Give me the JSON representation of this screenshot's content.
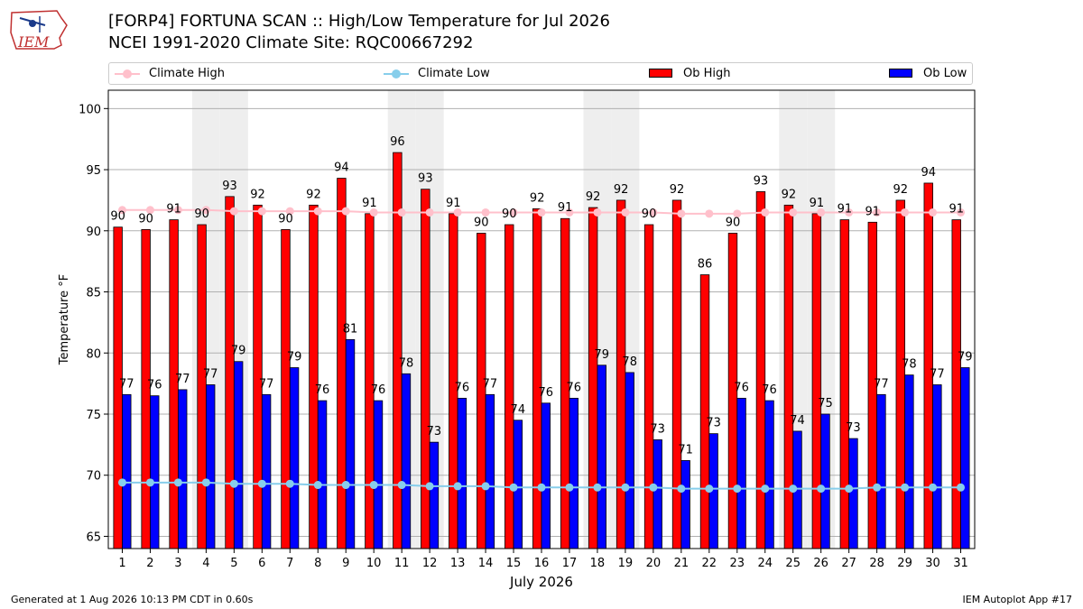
{
  "header": {
    "title_line1": "[FORP4] FORTUNA SCAN :: High/Low Temperature for Jul 2026",
    "title_line2": "NCEI 1991-2020 Climate Site: RQC00667292",
    "logo_text": "IEM"
  },
  "footer": {
    "left": "Generated at 1 Aug 2026 10:13 PM CDT in 0.60s",
    "right": "IEM Autoplot App #17"
  },
  "colors": {
    "ob_high": "#ff0000",
    "ob_low": "#0000ff",
    "climate_high": "#ffc0cb",
    "climate_low": "#87ceeb",
    "weekend_shade": "#eeeeee"
  },
  "chart_data": {
    "type": "bar",
    "xlabel": "July 2026",
    "ylabel": "Temperature °F",
    "ylim": [
      64,
      101.5
    ],
    "yticks": [
      65,
      70,
      75,
      80,
      85,
      90,
      95,
      100
    ],
    "grid": true,
    "legend_position": "top",
    "categories": [
      "1",
      "2",
      "3",
      "4",
      "5",
      "6",
      "7",
      "8",
      "9",
      "10",
      "11",
      "12",
      "13",
      "14",
      "15",
      "16",
      "17",
      "18",
      "19",
      "20",
      "21",
      "22",
      "23",
      "24",
      "25",
      "26",
      "27",
      "28",
      "29",
      "30",
      "31"
    ],
    "shaded_days": [
      4,
      5,
      11,
      12,
      18,
      19,
      25,
      26
    ],
    "series": [
      {
        "name": "Ob High",
        "kind": "bar",
        "values": [
          90.3,
          90.1,
          90.9,
          90.5,
          92.8,
          92.1,
          90.1,
          92.1,
          94.3,
          91.4,
          96.4,
          93.4,
          91.4,
          89.8,
          90.5,
          91.8,
          91.0,
          91.9,
          92.5,
          90.5,
          92.5,
          86.4,
          89.8,
          93.2,
          92.1,
          91.4,
          90.9,
          90.7,
          92.5,
          93.9,
          90.9
        ],
        "labels": [
          "90",
          "90",
          "91",
          "90",
          "93",
          "92",
          "90",
          "92",
          "94",
          "91",
          "96",
          "93",
          "91",
          "90",
          "90",
          "92",
          "91",
          "92",
          "92",
          "90",
          "92",
          "86",
          "90",
          "93",
          "92",
          "91",
          "91",
          "91",
          "92",
          "94",
          "91"
        ]
      },
      {
        "name": "Ob Low",
        "kind": "bar",
        "values": [
          76.6,
          76.5,
          77.0,
          77.4,
          79.3,
          76.6,
          78.8,
          76.1,
          81.1,
          76.1,
          78.3,
          72.7,
          76.3,
          76.6,
          74.5,
          75.9,
          76.3,
          79.0,
          78.4,
          72.9,
          71.2,
          73.4,
          76.3,
          76.1,
          73.6,
          75.0,
          73.0,
          76.6,
          78.2,
          77.4,
          78.8
        ],
        "labels": [
          "77",
          "76",
          "77",
          "77",
          "79",
          "77",
          "79",
          "76",
          "81",
          "76",
          "78",
          "73",
          "76",
          "77",
          "74",
          "76",
          "76",
          "79",
          "78",
          "73",
          "71",
          "73",
          "76",
          "76",
          "74",
          "75",
          "73",
          "77",
          "78",
          "77",
          "79"
        ]
      },
      {
        "name": "Climate High",
        "kind": "line",
        "values": [
          91.7,
          91.7,
          91.7,
          91.7,
          91.6,
          91.6,
          91.6,
          91.6,
          91.6,
          91.5,
          91.5,
          91.5,
          91.5,
          91.5,
          91.5,
          91.5,
          91.5,
          91.5,
          91.5,
          91.5,
          91.4,
          91.4,
          91.4,
          91.5,
          91.5,
          91.5,
          91.5,
          91.5,
          91.5,
          91.5,
          91.5
        ]
      },
      {
        "name": "Climate Low",
        "kind": "line",
        "values": [
          69.4,
          69.4,
          69.4,
          69.4,
          69.3,
          69.3,
          69.3,
          69.2,
          69.2,
          69.2,
          69.2,
          69.1,
          69.1,
          69.1,
          69.0,
          69.0,
          69.0,
          69.0,
          69.0,
          69.0,
          68.9,
          68.9,
          68.9,
          68.9,
          68.9,
          68.9,
          68.9,
          69.0,
          69.0,
          69.0,
          69.0
        ]
      }
    ]
  }
}
